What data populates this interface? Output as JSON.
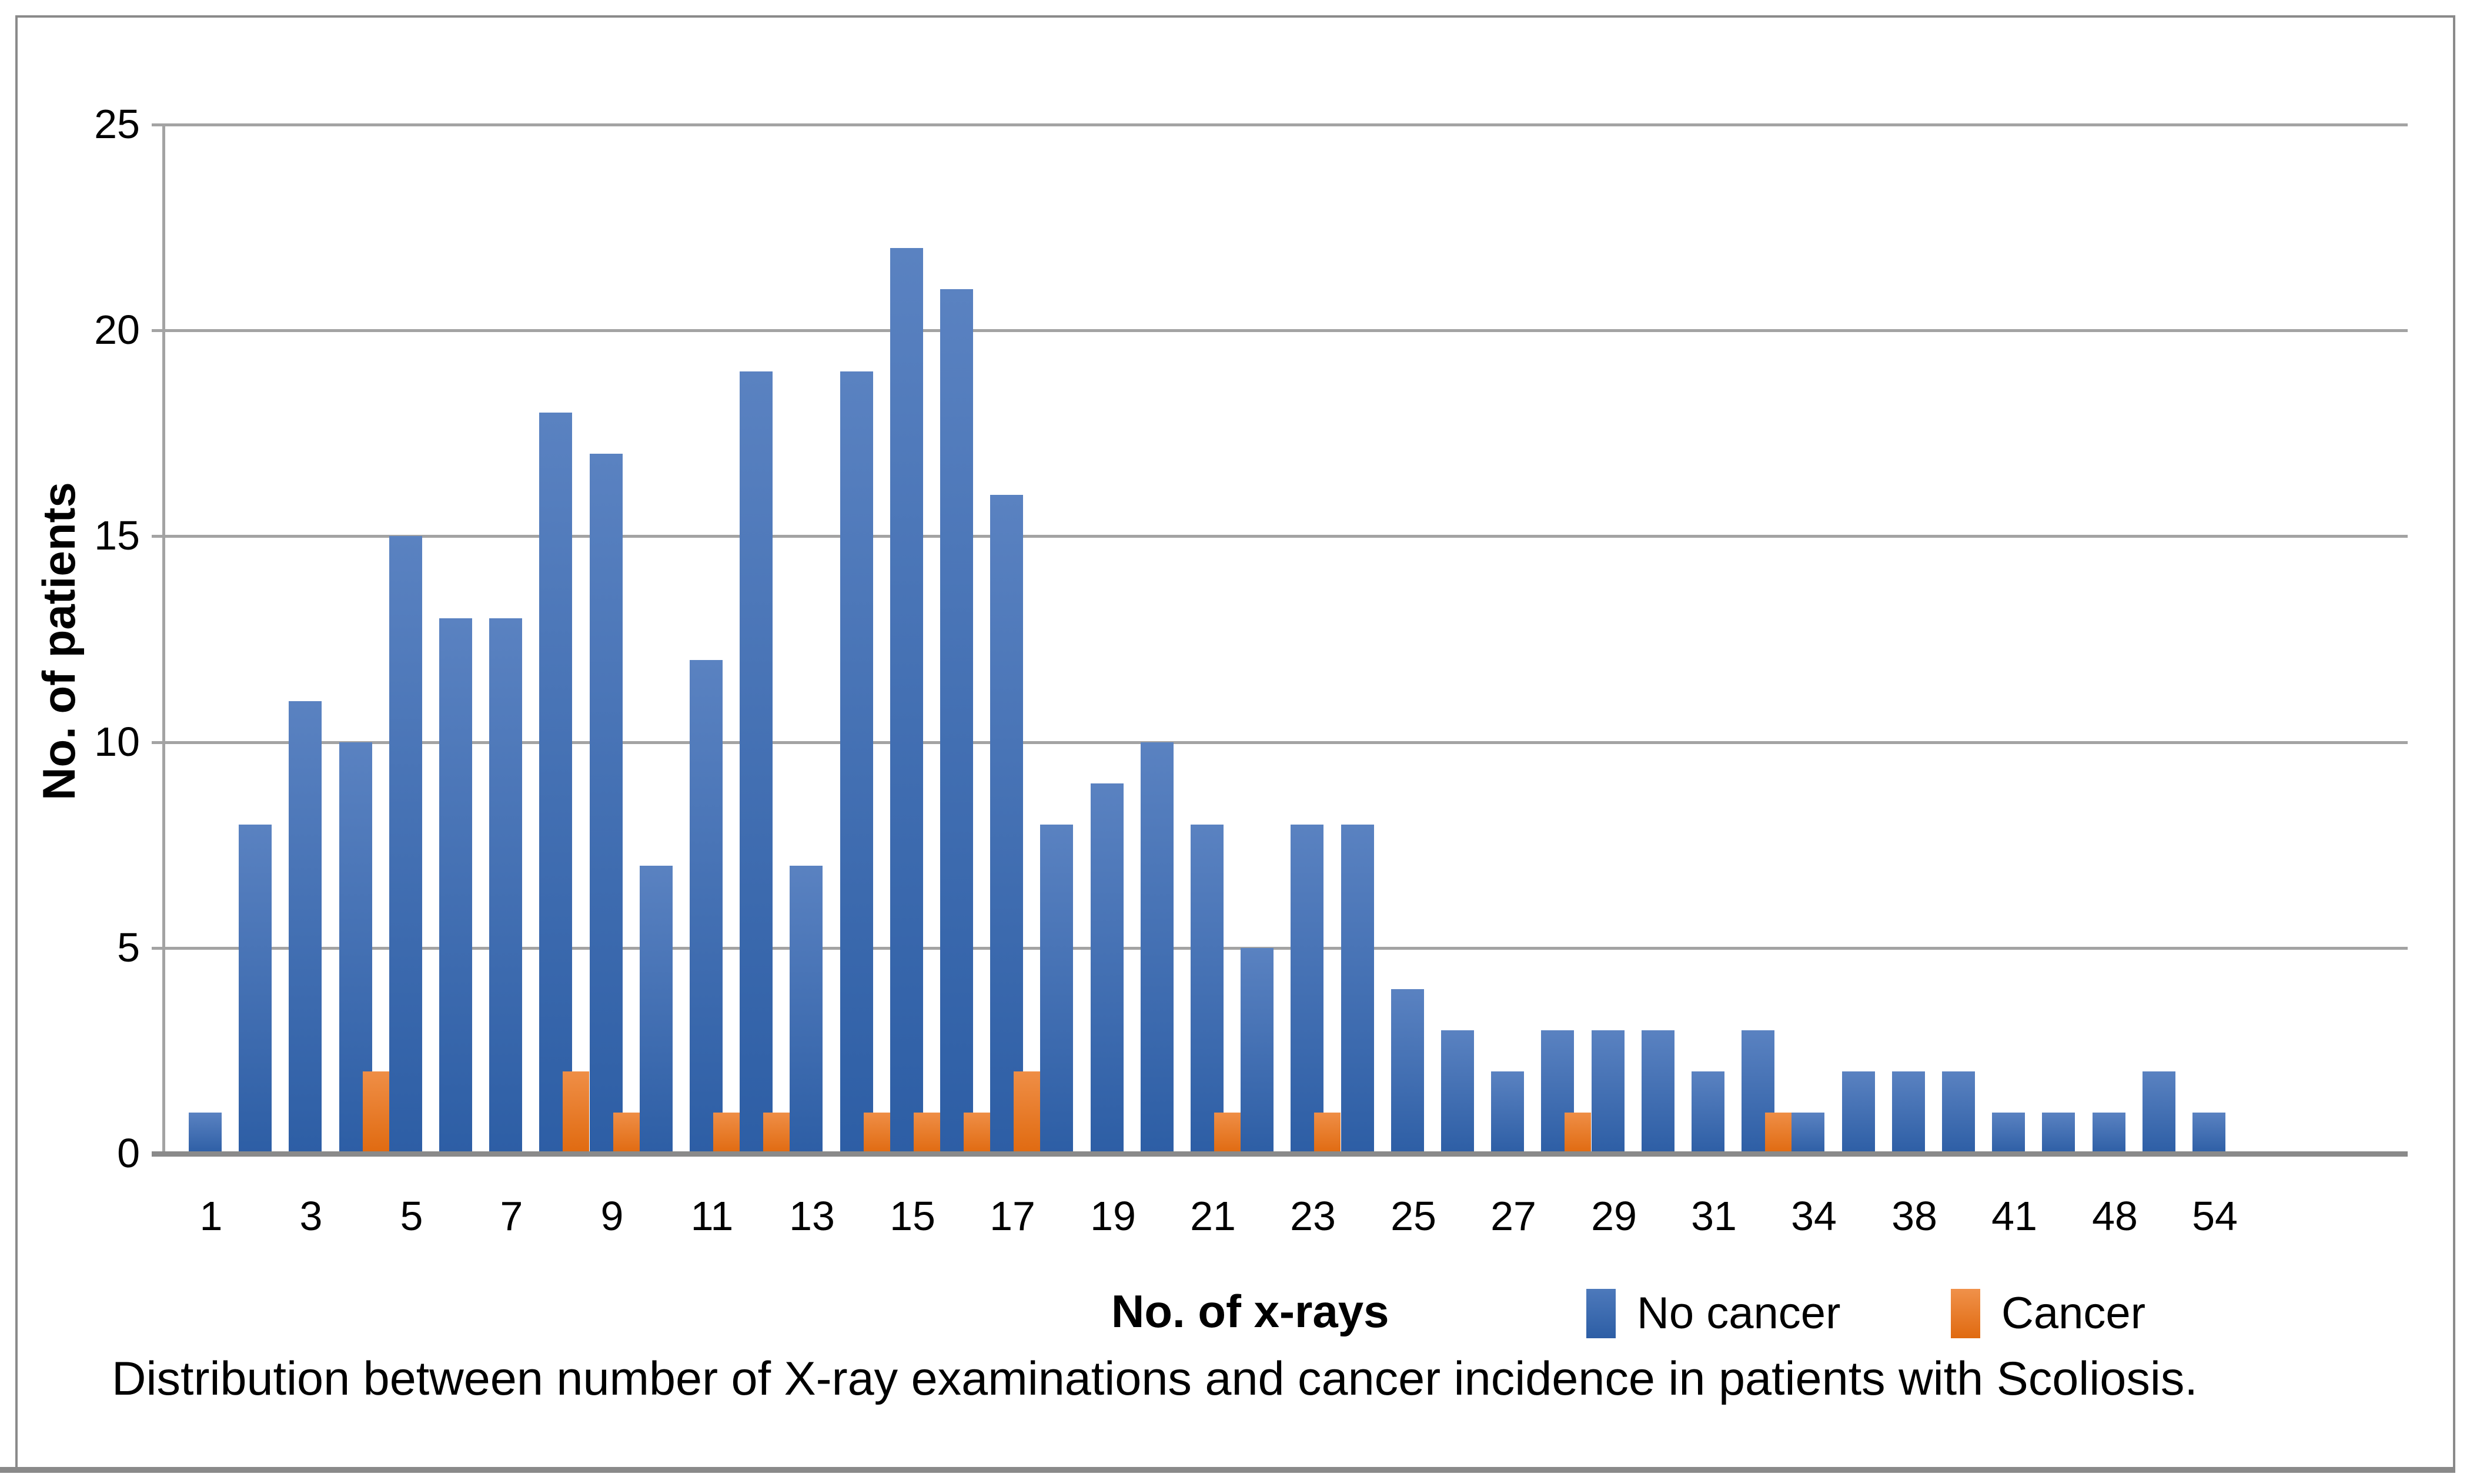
{
  "chart_data": {
    "type": "bar",
    "title": "",
    "xlabel": "No. of x-rays",
    "ylabel": "No. of patients",
    "caption": "Distribution between number of X-ray examinations and cancer incidence in patients with Scoliosis.",
    "ylim": [
      0,
      25
    ],
    "yticks": [
      0,
      5,
      10,
      15,
      20,
      25
    ],
    "grid": "horizontal-gridlines-on",
    "legend_position": "bottom-right-row",
    "categories": [
      "1",
      "",
      "3",
      "",
      "5",
      "",
      "7",
      "",
      "9",
      "",
      "11",
      "",
      "13",
      "",
      "15",
      "",
      "17",
      "",
      "19",
      "",
      "21",
      "",
      "23",
      "",
      "25",
      "",
      "27",
      "",
      "29",
      "",
      "31",
      "",
      "34",
      "",
      "38",
      "",
      "41",
      "",
      "48",
      "",
      "54"
    ],
    "series": [
      {
        "name": "No cancer",
        "color_top": "#5a82c1",
        "color_bottom": "#2d5ea5",
        "values": [
          1,
          8,
          11,
          10,
          15,
          13,
          13,
          18,
          17,
          7,
          12,
          19,
          7,
          19,
          22,
          21,
          16,
          8,
          9,
          10,
          8,
          5,
          8,
          8,
          4,
          3,
          2,
          3,
          3,
          3,
          2,
          3,
          1,
          2,
          2,
          2,
          1,
          1,
          1,
          2,
          1
        ]
      },
      {
        "name": "Cancer",
        "color_top": "#ef8e46",
        "color_bottom": "#e06a10",
        "values": [
          0,
          0,
          0,
          2,
          0,
          0,
          0,
          2,
          1,
          0,
          1,
          1,
          0,
          1,
          1,
          1,
          2,
          0,
          0,
          0,
          1,
          0,
          1,
          0,
          0,
          0,
          0,
          1,
          0,
          0,
          0,
          1,
          0,
          0,
          0,
          0,
          0,
          0,
          0,
          0,
          0
        ]
      }
    ]
  },
  "colors": {
    "gridline": "#a3a3a3",
    "axis_line": "#8a8a8a",
    "frame": "#8a8a8a",
    "text": "#000000",
    "background": "#ffffff"
  }
}
